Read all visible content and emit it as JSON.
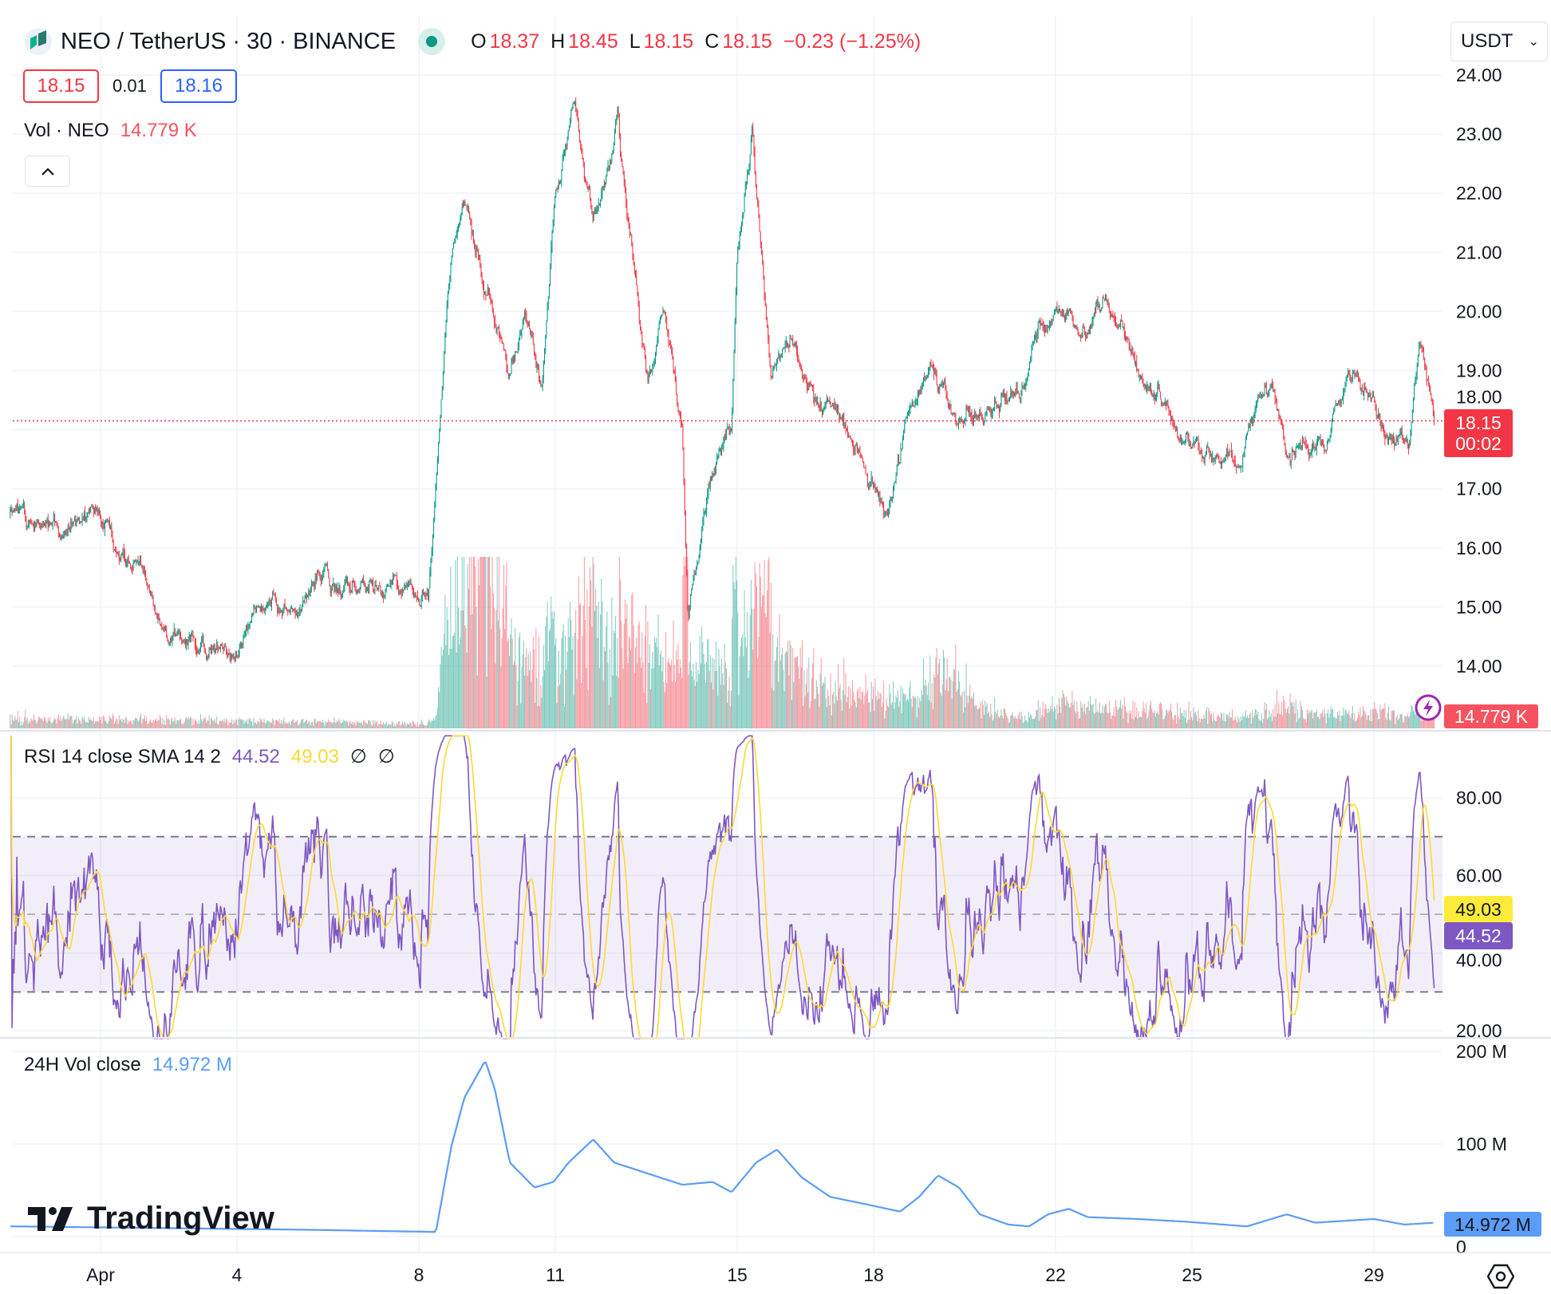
{
  "header": {
    "symbol_title": "NEO / TetherUS · 30 · BINANCE",
    "market_status": "open",
    "ohlc": [
      {
        "key": "O",
        "value": "18.37"
      },
      {
        "key": "H",
        "value": "18.45"
      },
      {
        "key": "L",
        "value": "18.15"
      },
      {
        "key": "C",
        "value": "18.15"
      }
    ],
    "change": "−0.23 (−1.25%)",
    "currency_select": "USDT",
    "bid": "18.15",
    "spread": "0.01",
    "ask": "18.16"
  },
  "volume_legend": {
    "label": "Vol · NEO",
    "value": "14.779 K"
  },
  "rsi_legend": {
    "label": "RSI 14 close SMA 14 2",
    "rsi": "44.52",
    "sma": "49.03",
    "extra1": "∅",
    "extra2": "∅"
  },
  "vol24_legend": {
    "label": "24H Vol close",
    "value": "14.972 M"
  },
  "axis_tags": {
    "last_price": "18.15",
    "countdown": "00:02",
    "volume": "14.779 K",
    "rsi_sma": "49.03",
    "rsi": "44.52",
    "vol24": "14.972 M"
  },
  "branding": "TradingView",
  "colors": {
    "up": "#089981",
    "down": "#f23645",
    "rsi": "#7e57c2",
    "rsi_sma": "#fdd835",
    "vol24": "#5b9cf6",
    "ask": "#2962ff"
  },
  "icons": {
    "logo": "neo-logo-icon",
    "collapse": "chevron-up-icon",
    "alert": "lightning-icon",
    "settings": "settings-hex-icon",
    "dropdown": "chevron-down-icon"
  },
  "chart_data": [
    {
      "type": "candlestick",
      "interval": "30m",
      "yticks": [
        "24.00",
        "23.00",
        "22.00",
        "21.00",
        "20.00",
        "19.00",
        "18.00",
        "17.00",
        "16.00",
        "15.00",
        "14.00"
      ],
      "ylim": [
        13.6,
        24.2
      ],
      "xticks": [
        "Apr",
        "4",
        "8",
        "11",
        "15",
        "18",
        "22",
        "25",
        "29"
      ],
      "last_price": 18.15,
      "close_path": [
        [
          "Mar 30 02:00",
          16.6
        ],
        [
          "Mar 31 02:00",
          16.2
        ],
        [
          "Mar 31 23:00",
          16.65
        ],
        [
          "Apr 1 10:00",
          15.9
        ],
        [
          "Apr 1 23:00",
          15.55
        ],
        [
          "Apr 2 06:00",
          14.7
        ],
        [
          "Apr 3 01:00",
          14.4
        ],
        [
          "Apr 4 00:00",
          14.2
        ],
        [
          "Apr 4 16:00",
          15.05
        ],
        [
          "Apr 5 08:00",
          14.8
        ],
        [
          "Apr 5 21:00",
          15.6
        ],
        [
          "Apr 6 15:00",
          15.2
        ],
        [
          "Apr 7 12:00",
          15.4
        ],
        [
          "Apr 8 05:00",
          15.2
        ],
        [
          "Apr 8 11:00",
          18.1
        ],
        [
          "Apr 8 17:00",
          20.75
        ],
        [
          "Apr 9 00:00",
          21.9
        ],
        [
          "Apr 9 11:00",
          20.4
        ],
        [
          "Apr 10 00:00",
          18.9
        ],
        [
          "Apr 10 08:00",
          20.1
        ],
        [
          "Apr 10 17:00",
          18.75
        ],
        [
          "Apr 11 00:00",
          22.1
        ],
        [
          "Apr 11 10:00",
          23.6
        ],
        [
          "Apr 11 20:00",
          21.4
        ],
        [
          "Apr 12 09:00",
          23.1
        ],
        [
          "Apr 12 17:00",
          20.9
        ],
        [
          "Apr 13 01:00",
          18.75
        ],
        [
          "Apr 13 09:00",
          20.1
        ],
        [
          "Apr 13 19:00",
          18.1
        ],
        [
          "Apr 13 22:00",
          14.9
        ],
        [
          "Apr 14 11:00",
          17.4
        ],
        [
          "Apr 14 21:00",
          18.1
        ],
        [
          "Apr 15 00:00",
          20.9
        ],
        [
          "Apr 15 08:00",
          22.9
        ],
        [
          "Apr 15 18:00",
          19.05
        ],
        [
          "Apr 16 05:00",
          19.75
        ],
        [
          "Apr 16 15:00",
          18.6
        ],
        [
          "Apr 17 04:00",
          18.4
        ],
        [
          "Apr 17 17:00",
          17.55
        ],
        [
          "Apr 18 07:00",
          16.55
        ],
        [
          "Apr 18 17:00",
          18.25
        ],
        [
          "Apr 19 06:00",
          18.9
        ],
        [
          "Apr 19 21:00",
          18.25
        ],
        [
          "Apr 20 13:00",
          18.25
        ],
        [
          "Apr 21 05:00",
          18.6
        ],
        [
          "Apr 21 15:00",
          19.6
        ],
        [
          "Apr 22 04:00",
          20.0
        ],
        [
          "Apr 22 17:00",
          19.6
        ],
        [
          "Apr 23 01:00",
          20.25
        ],
        [
          "Apr 23 19:00",
          19.05
        ],
        [
          "Apr 24 16:00",
          18.1
        ],
        [
          "Apr 25 13:00",
          17.55
        ],
        [
          "Apr 26 02:00",
          17.4
        ],
        [
          "Apr 26 10:00",
          18.6
        ],
        [
          "Apr 26 18:00",
          18.9
        ],
        [
          "Apr 27 02:00",
          17.55
        ],
        [
          "Apr 27 23:00",
          17.9
        ],
        [
          "Apr 28 09:00",
          18.9
        ],
        [
          "Apr 28 19:00",
          18.8
        ],
        [
          "Apr 29 06:00",
          17.9
        ],
        [
          "Apr 29 19:00",
          17.75
        ],
        [
          "Apr 30 00:00",
          19.4
        ],
        [
          "Apr 30 08:00",
          18.15
        ]
      ]
    },
    {
      "type": "line",
      "name": "RSI 14 close SMA 14",
      "yticks": [
        "80.00",
        "60.00",
        "40.00",
        "20.00"
      ],
      "ylim": [
        18,
        96
      ],
      "bands": {
        "upper": 70,
        "middle": 50,
        "lower": 30
      },
      "last_rsi": 44.52,
      "last_sma": 49.03
    },
    {
      "type": "line",
      "name": "24H Vol close",
      "yticks": [
        "200 M",
        "100 M",
        "0"
      ],
      "ylim": [
        0,
        200
      ],
      "unit": "M",
      "points": [
        [
          "Mar 30 02:00",
          11
        ],
        [
          "Apr 5 08:00",
          7.5
        ],
        [
          "Apr 8 09:00",
          5
        ],
        [
          "Apr 8 17:00",
          96
        ],
        [
          "Apr 9 00:00",
          150
        ],
        [
          "Apr 9 11:00",
          190
        ],
        [
          "Apr 9 16:00",
          160
        ],
        [
          "Apr 10 00:00",
          80
        ],
        [
          "Apr 10 13:00",
          53
        ],
        [
          "Apr 10 23:00",
          59
        ],
        [
          "Apr 11 07:00",
          80
        ],
        [
          "Apr 11 20:00",
          105
        ],
        [
          "Apr 12 07:00",
          80
        ],
        [
          "Apr 12 22:00",
          70
        ],
        [
          "Apr 13 19:00",
          56
        ],
        [
          "Apr 14 11:00",
          59
        ],
        [
          "Apr 14 21:00",
          48
        ],
        [
          "Apr 15 10:00",
          80
        ],
        [
          "Apr 15 21:00",
          94
        ],
        [
          "Apr 16 10:00",
          64
        ],
        [
          "Apr 17 01:00",
          43
        ],
        [
          "Apr 17 22:00",
          34
        ],
        [
          "Apr 18 14:00",
          27
        ],
        [
          "Apr 19 00:00",
          43
        ],
        [
          "Apr 19 10:00",
          66
        ],
        [
          "Apr 19 21:00",
          53
        ],
        [
          "Apr 20 08:00",
          24
        ],
        [
          "Apr 20 23:00",
          13
        ],
        [
          "Apr 21 10:00",
          11
        ],
        [
          "Apr 21 20:00",
          24
        ],
        [
          "Apr 22 07:00",
          30
        ],
        [
          "Apr 22 17:00",
          21
        ],
        [
          "Apr 23 19:00",
          19
        ],
        [
          "Apr 24 21:00",
          16
        ],
        [
          "Apr 26 05:00",
          11
        ],
        [
          "Apr 27 02:00",
          24
        ],
        [
          "Apr 27 17:00",
          15
        ],
        [
          "Apr 29 00:00",
          19
        ],
        [
          "Apr 29 16:00",
          13
        ],
        [
          "Apr 30 08:00",
          14.972
        ]
      ]
    }
  ]
}
